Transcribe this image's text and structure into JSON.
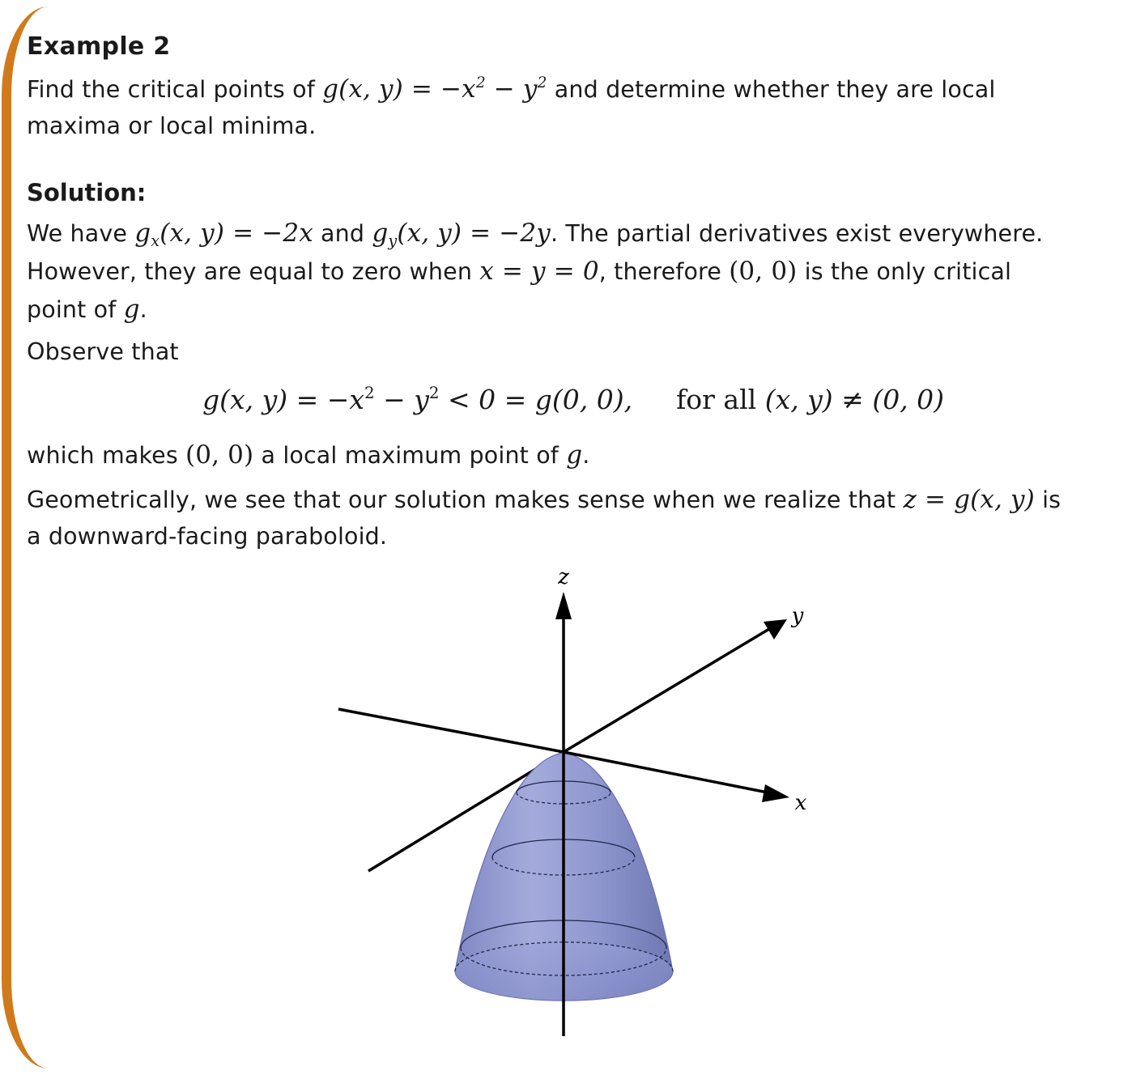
{
  "example": {
    "title": "Example 2",
    "prompt_l1_a": "Find the critical points of ",
    "prompt_l1_math": "g(x, y) = −x",
    "prompt_l1_math_b": " − y",
    "prompt_l1_b": " and determine whether they are local",
    "prompt_l2": "maxima or local minima.",
    "exp2": "2"
  },
  "solution": {
    "heading": "Solution:",
    "p1_l1_a": "We have ",
    "p1_l1_gx_g": "g",
    "p1_l1_gx_sub": "x",
    "p1_l1_gx_rest": "(x, y) = −2x",
    "p1_l1_and": " and ",
    "p1_l1_gy_g": "g",
    "p1_l1_gy_sub": "y",
    "p1_l1_gy_rest": "(x, y) = −2y",
    "p1_l1_b": ". The partial derivatives exist everywhere.",
    "p1_l2_a": "However, they are equal to zero when ",
    "p1_l2_math": "x = y = 0",
    "p1_l2_b": ", therefore ",
    "p1_l2_pt": "(0, 0)",
    "p1_l2_c": " is the only critical",
    "p1_l3_a": "point of ",
    "p1_l3_g": "g",
    "p1_l3_b": ".",
    "p2": "Observe that",
    "display_a": "g(x, y) = −x",
    "display_b": " − y",
    "display_c": " < 0 = g(0, 0),",
    "display_forall": "for all",
    "display_d": "(x, y) ≠ (0, 0)",
    "p3_a": "which makes ",
    "p3_pt": "(0, 0)",
    "p3_b": " a local maximum point of ",
    "p3_g": "g",
    "p3_c": ".",
    "p4_l1_a": "Geometrically, we see that our solution makes sense when we realize that ",
    "p4_l1_math": "z = g(x, y)",
    "p4_l1_b": " is",
    "p4_l2": "a downward-facing paraboloid."
  },
  "figure": {
    "axis_z": "z",
    "axis_y": "y",
    "axis_x": "x",
    "surface_color": "#8f97cf",
    "accent_color": "#d07a1c"
  }
}
